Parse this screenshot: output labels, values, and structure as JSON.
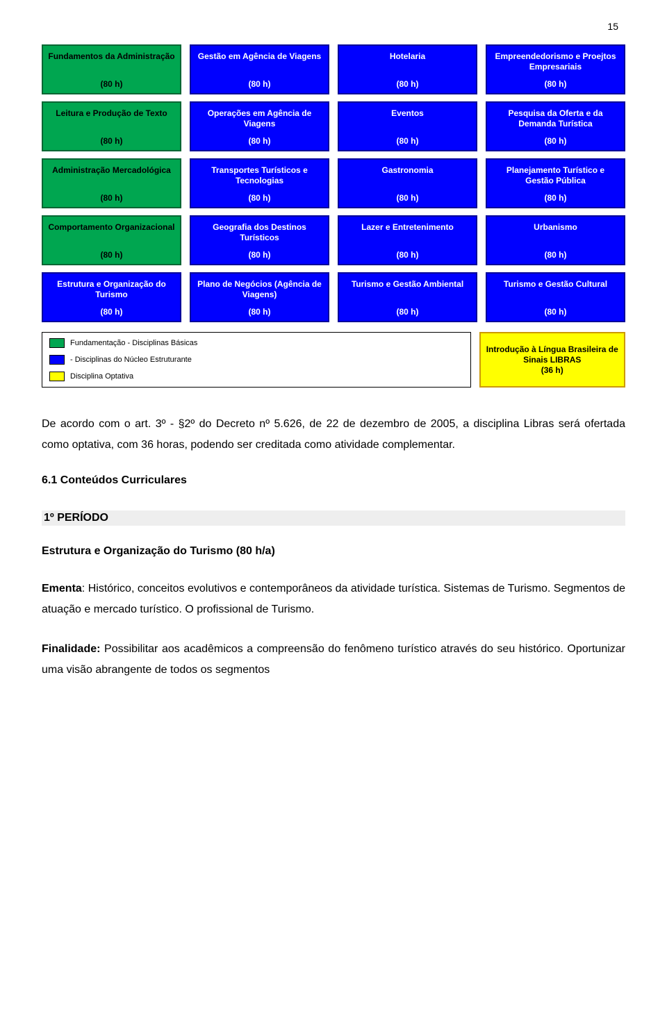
{
  "page_number": "15",
  "colors": {
    "green_bg": "#00a650",
    "green_border": "#006633",
    "blue_bg": "#0000ff",
    "blue_border": "#000099",
    "yellow_bg": "#ffff00",
    "yellow_border": "#cc9900",
    "white": "#ffffff",
    "black": "#000000",
    "grey_band": "#eeeeee"
  },
  "grid": {
    "rows": [
      [
        {
          "title": "Fundamentos da Administração",
          "hours": "(80 h)",
          "type": "green"
        },
        {
          "title": "Gestão em Agência de Viagens",
          "hours": "(80 h)",
          "type": "blue"
        },
        {
          "title": "Hotelaria",
          "hours": "(80 h)",
          "type": "blue"
        },
        {
          "title": "Empreendedorismo e Proejtos Empresariais",
          "hours": "(80 h)",
          "type": "blue"
        }
      ],
      [
        {
          "title": "Leitura e Produção de Texto",
          "hours": "(80 h)",
          "type": "green"
        },
        {
          "title": "Operações em Agência de Viagens",
          "hours": "(80 h)",
          "type": "blue"
        },
        {
          "title": "Eventos",
          "hours": "(80 h)",
          "type": "blue"
        },
        {
          "title": "Pesquisa da Oferta e da Demanda Turística",
          "hours": "(80 h)",
          "type": "blue"
        }
      ],
      [
        {
          "title": "Administração Mercadológica",
          "hours": "(80 h)",
          "type": "green"
        },
        {
          "title": "Transportes Turísticos e Tecnologias",
          "hours": "(80 h)",
          "type": "blue"
        },
        {
          "title": "Gastronomia",
          "hours": "(80 h)",
          "type": "blue"
        },
        {
          "title": "Planejamento Turístico e Gestão Pública",
          "hours": "(80 h)",
          "type": "blue"
        }
      ],
      [
        {
          "title": "Comportamento Organizacional",
          "hours": "(80 h)",
          "type": "green"
        },
        {
          "title": "Geografia dos Destinos Turísticos",
          "hours": "(80 h)",
          "type": "blue"
        },
        {
          "title": "Lazer e Entretenimento",
          "hours": "(80 h)",
          "type": "blue"
        },
        {
          "title": "Urbanismo",
          "hours": "(80 h)",
          "type": "blue"
        }
      ],
      [
        {
          "title": "Estrutura e Organização do Turismo",
          "hours": "(80 h)",
          "type": "blue"
        },
        {
          "title": "Plano de Negócios (Agência de Viagens)",
          "hours": "(80 h)",
          "type": "blue"
        },
        {
          "title": "Turismo e Gestão Ambiental",
          "hours": "(80 h)",
          "type": "blue"
        },
        {
          "title": "Turismo e Gestão Cultural",
          "hours": "(80 h)",
          "type": "blue"
        }
      ]
    ]
  },
  "legend": {
    "items": [
      {
        "color": "green",
        "label": "Fundamentação - Disciplinas Básicas"
      },
      {
        "color": "blue",
        "label": "- Disciplinas do Núcleo Estruturante"
      },
      {
        "color": "yellow",
        "label": "Disciplina Optativa"
      }
    ]
  },
  "optional_cell": {
    "title": "Introdução à Língua Brasileira de Sinais LIBRAS",
    "hours": "(36 h)",
    "type": "yellow"
  },
  "paragraph1": "De acordo com o art. 3º - §2º do Decreto nº 5.626, de 22 de dezembro de 2005, a disciplina Libras será ofertada como optativa, com 36 horas, podendo ser creditada como atividade complementar.",
  "section_heading": "6.1 Conteúdos Curriculares",
  "periodo_heading": "1º PERÍODO",
  "discipline_heading": "Estrutura e Organização do Turismo (80 h/a)",
  "ementa_label": "Ementa",
  "ementa_text": ": Histórico, conceitos evolutivos e contemporâneos da atividade turística. Sistemas de Turismo. Segmentos de atuação e mercado turístico. O profissional de Turismo.",
  "finalidade_label": "Finalidade:",
  "finalidade_text": " Possibilitar aos acadêmicos a compreensão do fenômeno turístico através do seu histórico. Oportunizar uma visão abrangente de todos os segmentos"
}
